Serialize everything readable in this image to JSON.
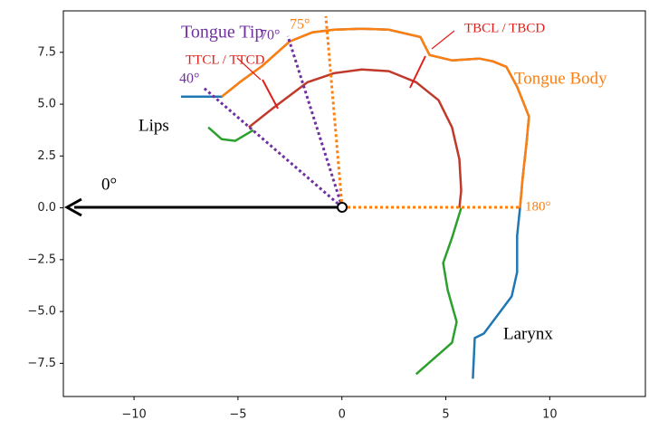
{
  "chart_data": {
    "type": "line",
    "xlim": [
      -13.4,
      14.6
    ],
    "ylim": [
      -9.1,
      9.5
    ],
    "xticks": [
      {
        "value": -10,
        "label": "−10"
      },
      {
        "value": -5,
        "label": "−5"
      },
      0,
      5,
      10
    ],
    "yticks": [
      {
        "value": -7.5,
        "label": "−7.5"
      },
      {
        "value": -5,
        "label": "−5.0"
      },
      {
        "value": -2.5,
        "label": "−2.5"
      },
      {
        "value": 0,
        "label": "0.0"
      },
      2.5,
      {
        "value": 5,
        "label": "5.0"
      },
      7.5
    ],
    "series": [
      {
        "color": "#1f77b4",
        "x": [
          -7.74,
          -5.78,
          -4.91,
          -3.83,
          -2.52,
          -1.43,
          -0.35,
          0.96,
          2.26,
          3.78,
          4.22,
          5.3,
          6.61,
          7.26,
          7.91,
          8.43,
          8.78,
          9.0,
          8.87,
          8.7,
          8.57,
          8.43,
          8.43,
          8.17,
          6.83,
          6.39,
          6.3
        ],
        "y": [
          5.36,
          5.36,
          6.06,
          6.85,
          8.02,
          8.46,
          8.59,
          8.64,
          8.59,
          8.24,
          7.37,
          7.11,
          7.2,
          7.07,
          6.8,
          5.84,
          4.97,
          4.4,
          3.01,
          1.48,
          0,
          -1.35,
          -3.1,
          -4.27,
          -6.06,
          -6.28,
          -8.24
        ]
      },
      {
        "color": "#ff7f0e",
        "x": [
          -5.78,
          -4.91,
          -3.83,
          -2.52,
          -1.43,
          -0.35,
          0.96,
          2.26,
          3.78,
          4.22,
          5.3,
          6.61,
          7.26,
          7.91,
          8.43,
          8.78,
          9.0,
          8.87,
          8.7,
          8.57
        ],
        "y": [
          5.36,
          6.06,
          6.85,
          8.02,
          8.46,
          8.59,
          8.64,
          8.59,
          8.24,
          7.37,
          7.11,
          7.2,
          7.07,
          6.8,
          5.84,
          4.97,
          4.4,
          3.01,
          1.48,
          0
        ]
      },
      {
        "color": "#c0392b",
        "x": [
          -4.48,
          -3.39,
          -1.65,
          -0.35,
          0.96,
          2.26,
          3.57,
          4.65,
          5.3,
          5.65,
          5.74,
          5.65
        ],
        "y": [
          3.88,
          4.75,
          6.06,
          6.5,
          6.67,
          6.59,
          6.06,
          5.19,
          3.88,
          2.35,
          0.83,
          0
        ]
      },
      {
        "color": "#2ca02c",
        "x": [
          -6.43,
          -5.78,
          -5.13,
          -4.26,
          null,
          5.74,
          5.3,
          4.87,
          5.09,
          5.52,
          5.3,
          3.57
        ],
        "y": [
          3.88,
          3.31,
          3.23,
          3.75,
          null,
          0,
          -1.44,
          -2.66,
          -3.97,
          -5.5,
          -6.5,
          -8.02
        ]
      }
    ],
    "annotations": [
      {
        "text": "Tongue Tip",
        "color": "#7030a0"
      },
      {
        "text": "70°",
        "color": "#7030a0"
      },
      {
        "text": "75°",
        "color": "#ff7f0e"
      },
      {
        "text": "TTCL / TTCD",
        "color": "#e0201b"
      },
      {
        "text": "40°",
        "color": "#7030a0"
      },
      {
        "text": "TBCL / TBCD",
        "color": "#e0201b"
      },
      {
        "text": "Tongue Body",
        "color": "#ff7f0e"
      },
      {
        "text": "Lips",
        "color": "#000000"
      },
      {
        "text": "0°",
        "color": "#000000"
      },
      {
        "text": "180°",
        "color": "#ff7f0e"
      },
      {
        "text": "Larynx",
        "color": "#000000"
      }
    ]
  }
}
